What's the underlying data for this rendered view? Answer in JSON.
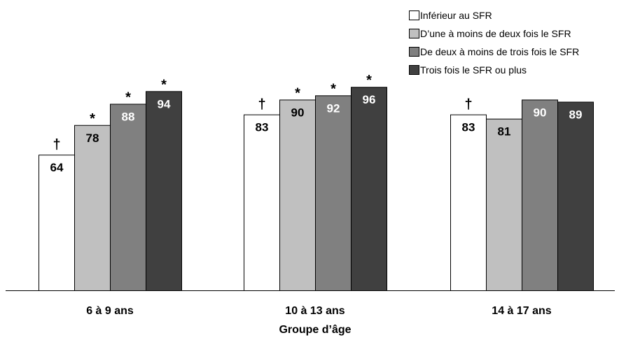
{
  "chart_data": {
    "type": "bar",
    "xlabel": "Groupe d’âge",
    "ylabel": "",
    "ylim": [
      0,
      104
    ],
    "grid": false,
    "legend_position": "top-right",
    "categories": [
      "6 à 9 ans",
      "10 à 13 ans",
      "14 à 17 ans"
    ],
    "series": [
      {
        "name": "Inférieur au SFR",
        "color": "#ffffff",
        "label_color": "#000000",
        "values": [
          64,
          83,
          83
        ],
        "markers": [
          "†",
          "†",
          "†"
        ]
      },
      {
        "name": "D’une à moins de deux fois le SFR",
        "color": "#c0c0c0",
        "label_color": "#000000",
        "values": [
          78,
          90,
          81
        ],
        "markers": [
          "*",
          "*",
          ""
        ]
      },
      {
        "name": "De deux à moins de trois fois le SFR",
        "color": "#808080",
        "label_color": "#ffffff",
        "values": [
          88,
          92,
          90
        ],
        "markers": [
          "*",
          "*",
          ""
        ]
      },
      {
        "name": "Trois fois le SFR ou plus",
        "color": "#404040",
        "label_color": "#ffffff",
        "values": [
          94,
          96,
          89
        ],
        "markers": [
          "*",
          "*",
          ""
        ]
      }
    ]
  }
}
